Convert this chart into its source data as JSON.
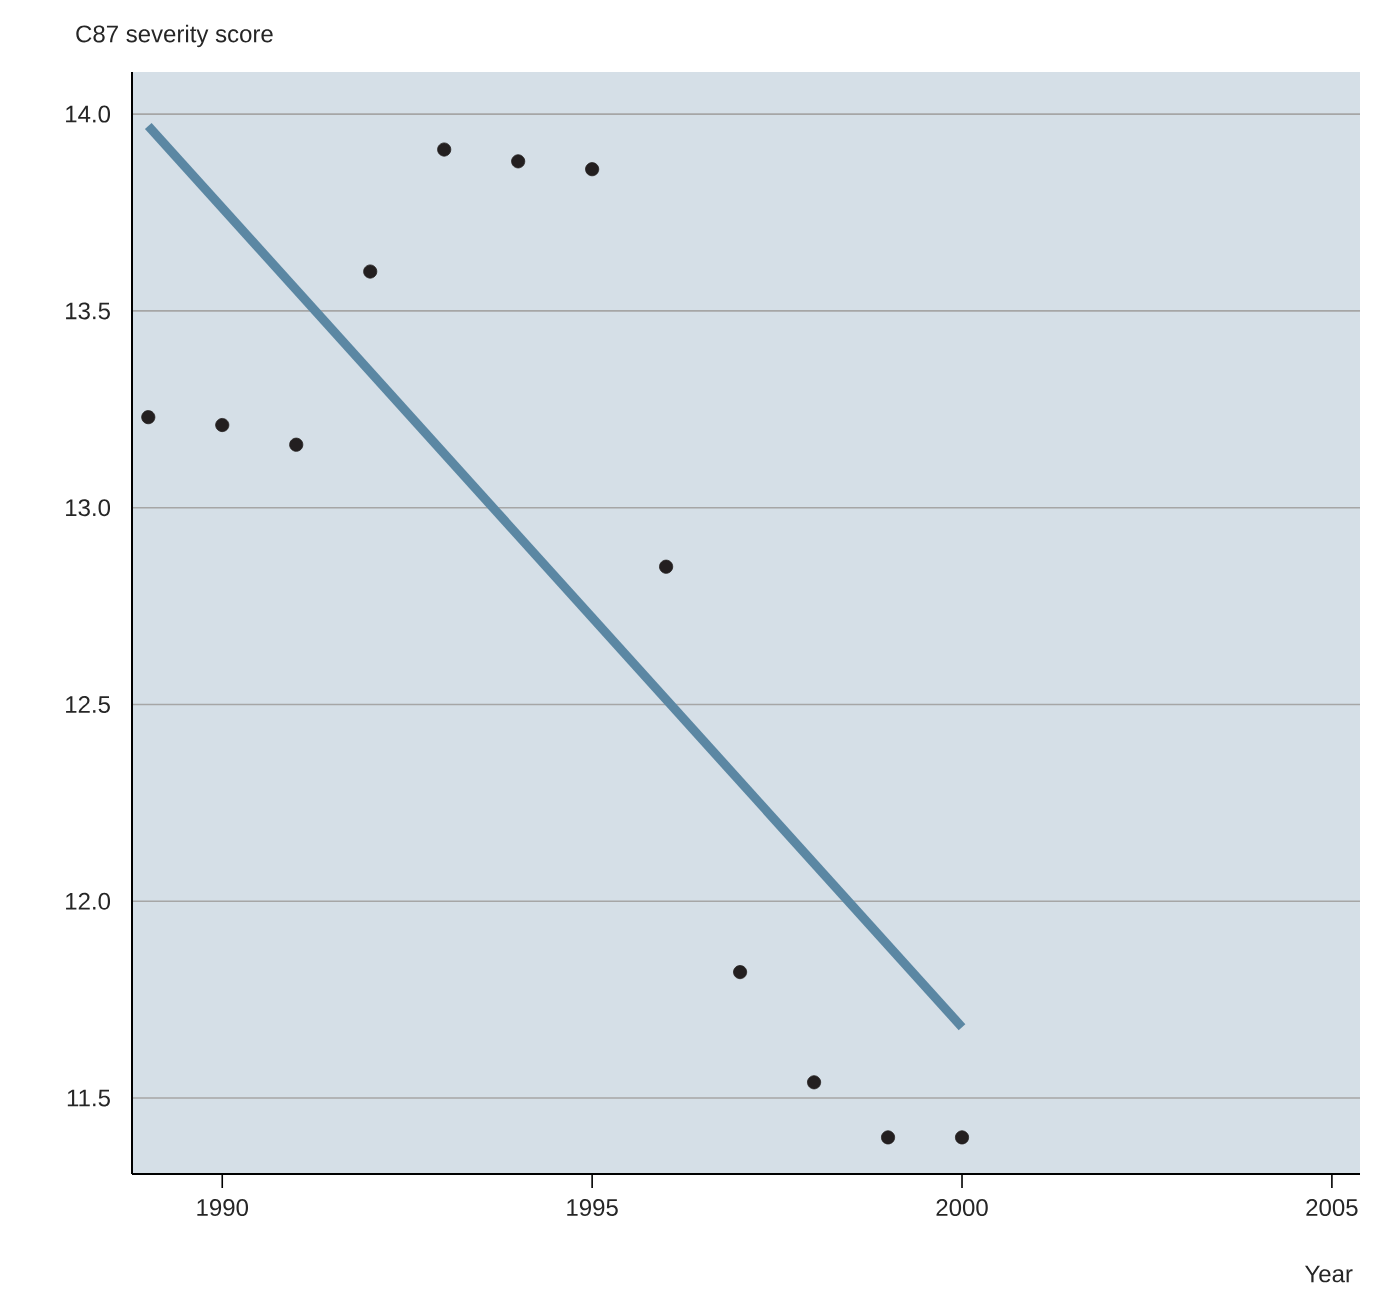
{
  "chart_data": {
    "type": "scatter",
    "xlabel": "Year",
    "ylabel": "C87 severity score",
    "xlim": [
      1988.78,
      2005.38
    ],
    "ylim": [
      11.307,
      14.107
    ],
    "xticks": [
      1990,
      1995,
      2000,
      2005
    ],
    "yticks": [
      {
        "value": 11.5,
        "label": "11.5"
      },
      {
        "value": 12,
        "label": "12.0"
      },
      {
        "value": 12.5,
        "label": "12.5"
      },
      {
        "value": 13,
        "label": "13.0"
      },
      {
        "value": 13.5,
        "label": "13.5"
      },
      {
        "value": 14,
        "label": "14.0"
      }
    ],
    "grid": "y",
    "series": [
      {
        "color": "#231f20",
        "x": [
          1989,
          1990,
          1991,
          1992,
          1993,
          1994,
          1995,
          1996,
          1997,
          1998,
          1999,
          2000
        ],
        "values": [
          13.23,
          13.21,
          13.16,
          13.6,
          13.91,
          13.88,
          13.86,
          12.85,
          11.82,
          11.54,
          11.4,
          11.4
        ]
      },
      {
        "type": "line",
        "color": "#5b87a3",
        "x": [
          1989,
          2000
        ],
        "values": [
          13.97,
          11.68
        ]
      }
    ]
  }
}
